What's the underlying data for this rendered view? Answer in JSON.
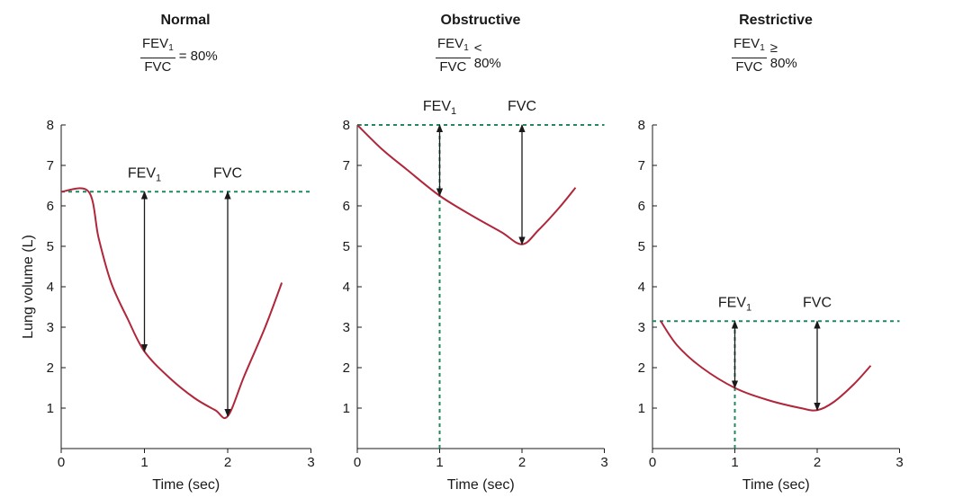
{
  "chart_data": [
    {
      "type": "line",
      "title": "Normal",
      "ratio": {
        "numerator": "FEV",
        "numerator_sub": "1",
        "denominator": "FVC",
        "relation": "= 80%"
      },
      "xlabel": "Time (sec)",
      "ylabel": "Lung volume (L)",
      "xlim": [
        0,
        3
      ],
      "ylim": [
        0,
        8
      ],
      "xticks": [
        "0",
        "1",
        "2",
        "3"
      ],
      "yticks": [
        "1",
        "2",
        "3",
        "4",
        "5",
        "6",
        "7",
        "8"
      ],
      "series": [
        {
          "color": "#b0263a",
          "x": [
            0,
            0.33,
            0.45,
            0.6,
            0.8,
            1.0,
            1.3,
            1.6,
            1.85,
            2.0,
            2.2,
            2.45,
            2.65
          ],
          "y": [
            6.35,
            6.35,
            5.2,
            4.1,
            3.2,
            2.4,
            1.75,
            1.25,
            0.95,
            0.8,
            1.8,
            3.0,
            4.1
          ]
        }
      ],
      "reference_lines": [
        {
          "orientation": "horizontal",
          "y": 6.35,
          "color": "#1f8a5e"
        }
      ],
      "arrows": [
        {
          "label": "FEV",
          "label_sub": "1",
          "x": 1,
          "y_from": 6.35,
          "y_to": 2.4
        },
        {
          "label": "FVC",
          "label_sub": "",
          "x": 2,
          "y_from": 6.35,
          "y_to": 0.8
        }
      ]
    },
    {
      "type": "line",
      "title": "Obstructive",
      "ratio": {
        "numerator": "FEV",
        "numerator_sub": "1",
        "denominator": "FVC",
        "relation": "< 80%"
      },
      "xlabel": "Time (sec)",
      "ylabel": "",
      "xlim": [
        0,
        3
      ],
      "ylim": [
        0,
        8
      ],
      "xticks": [
        "0",
        "1",
        "2",
        "3"
      ],
      "yticks": [
        "1",
        "2",
        "3",
        "4",
        "5",
        "6",
        "7",
        "8"
      ],
      "series": [
        {
          "color": "#b0263a",
          "x": [
            0,
            0.3,
            0.6,
            1.0,
            1.4,
            1.75,
            2.0,
            2.2,
            2.45,
            2.65
          ],
          "y": [
            8.0,
            7.4,
            6.9,
            6.25,
            5.75,
            5.35,
            5.05,
            5.4,
            5.95,
            6.45
          ]
        }
      ],
      "reference_lines": [
        {
          "orientation": "horizontal",
          "y": 8.0,
          "color": "#1f8a5e"
        },
        {
          "orientation": "vertical",
          "x": 1.0,
          "color": "#1f8a5e"
        }
      ],
      "arrows": [
        {
          "label": "FEV",
          "label_sub": "1",
          "x": 1,
          "y_from": 8.0,
          "y_to": 6.25
        },
        {
          "label": "FVC",
          "label_sub": "",
          "x": 2,
          "y_from": 8.0,
          "y_to": 5.05
        }
      ]
    },
    {
      "type": "line",
      "title": "Restrictive",
      "ratio": {
        "numerator": "FEV",
        "numerator_sub": "1",
        "denominator": "FVC",
        "relation": "≥ 80%"
      },
      "xlabel": "Time (sec)",
      "ylabel": "",
      "xlim": [
        0,
        3
      ],
      "ylim": [
        0,
        8
      ],
      "xticks": [
        "0",
        "1",
        "2",
        "3"
      ],
      "yticks": [
        "1",
        "2",
        "3",
        "4",
        "5",
        "6",
        "7",
        "8"
      ],
      "series": [
        {
          "color": "#b0263a",
          "x": [
            0.1,
            0.3,
            0.6,
            1.0,
            1.4,
            1.8,
            2.0,
            2.2,
            2.45,
            2.65
          ],
          "y": [
            3.15,
            2.55,
            2.0,
            1.5,
            1.2,
            1.0,
            0.95,
            1.15,
            1.6,
            2.05
          ]
        }
      ],
      "reference_lines": [
        {
          "orientation": "horizontal",
          "y": 3.15,
          "color": "#1f8a5e"
        },
        {
          "orientation": "vertical",
          "x": 1.0,
          "color": "#1f8a5e"
        }
      ],
      "arrows": [
        {
          "label": "FEV",
          "label_sub": "1",
          "x": 1,
          "y_from": 3.15,
          "y_to": 1.5
        },
        {
          "label": "FVC",
          "label_sub": "",
          "x": 2,
          "y_from": 3.15,
          "y_to": 0.95
        }
      ]
    }
  ]
}
